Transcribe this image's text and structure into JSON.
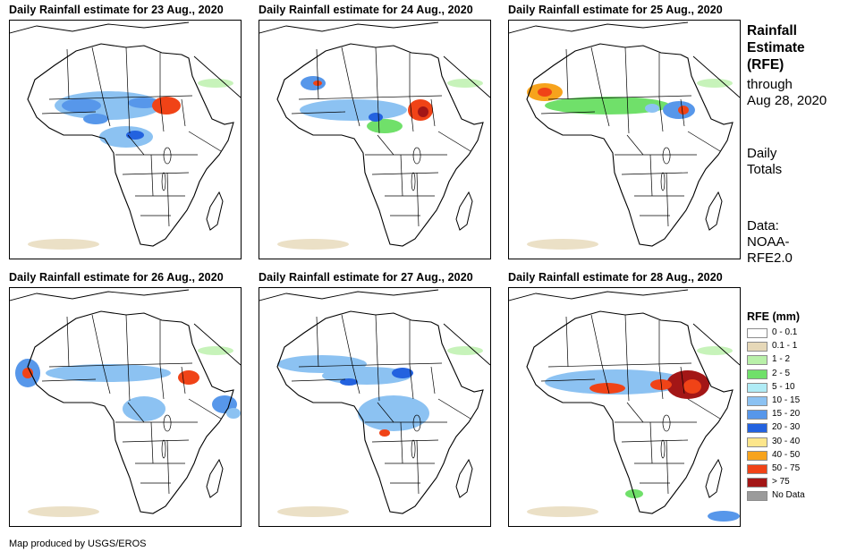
{
  "panels": [
    {
      "title": "Daily Rainfall estimate for 23 Aug., 2020"
    },
    {
      "title": "Daily Rainfall estimate for 24 Aug., 2020"
    },
    {
      "title": "Daily Rainfall estimate for 25 Aug., 2020"
    },
    {
      "title": "Daily Rainfall estimate for 26 Aug., 2020"
    },
    {
      "title": "Daily Rainfall estimate for 27 Aug., 2020"
    },
    {
      "title": "Daily Rainfall estimate for 28 Aug., 2020"
    }
  ],
  "sidebar": {
    "heading_line1": "Rainfall",
    "heading_line2": "Estimate",
    "heading_line3": "(RFE)",
    "through_line1": "through",
    "through_line2": "Aug 28, 2020",
    "totals_line1": "Daily",
    "totals_line2": "Totals",
    "data_line1": "Data:",
    "data_line2": "NOAA-",
    "data_line3": "RFE2.0"
  },
  "legend": {
    "title": "RFE (mm)",
    "items": [
      {
        "label": "0 - 0.1",
        "color": "#ffffff"
      },
      {
        "label": "0.1 - 1",
        "color": "#e6d8b8"
      },
      {
        "label": "1 - 2",
        "color": "#b9f0a9"
      },
      {
        "label": "2 - 5",
        "color": "#70e06a"
      },
      {
        "label": "5 - 10",
        "color": "#b0ecf6"
      },
      {
        "label": "10 - 15",
        "color": "#8cc2f2"
      },
      {
        "label": "15 - 20",
        "color": "#5797ea"
      },
      {
        "label": "20 - 30",
        "color": "#2362df"
      },
      {
        "label": "30 - 40",
        "color": "#fde68b"
      },
      {
        "label": "40 - 50",
        "color": "#f7a31c"
      },
      {
        "label": "50 - 75",
        "color": "#f04317"
      },
      {
        "label": "> 75",
        "color": "#a31616"
      },
      {
        "label": "No Data",
        "color": "#9b9b9b"
      }
    ]
  },
  "footer": {
    "text": "Map produced by USGS/EROS"
  }
}
